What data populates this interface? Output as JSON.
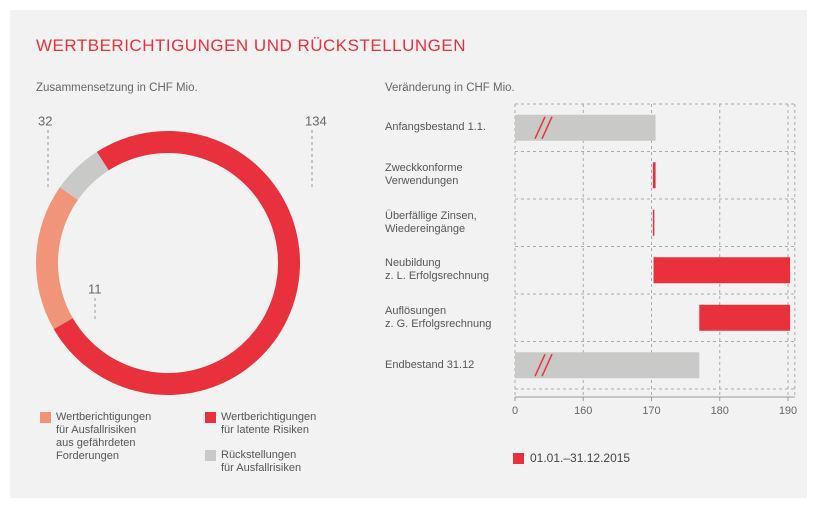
{
  "title": "WERTBERICHTIGUNGEN UND RÜCKSTELLUNGEN",
  "chart_data": [
    {
      "type": "donut",
      "subtitle": "Zusammensetzung in CHF Mio.",
      "categories": [
        "Wertberichtigungen\nfür Ausfallrisiken\naus gefährdeten\nForderungen",
        "Wertberichtigungen\nfür latente Risiken",
        "Rückstellungen\nfür Ausfallrisiken"
      ],
      "values": [
        32,
        134,
        11
      ],
      "colors": [
        "#f0957a",
        "#e8313c",
        "#c9c9c7"
      ]
    },
    {
      "type": "waterfall",
      "subtitle": "Veränderung in CHF Mio.",
      "categories": [
        "Anfangsbestand 1.1.",
        "Zweckkonforme\nVerwendungen",
        "Überfällige Zinsen,\nWiedereingänge",
        "Neubildung\nz. L. Erfolgsrechnung",
        "Auflösungen\nz. G. Erfolgsrechnung",
        "Endbestand 31.12"
      ],
      "totals": {
        "color": "#c9c9c7",
        "values": [
          170.6,
          null,
          null,
          null,
          null,
          177.0
        ]
      },
      "series": [
        {
          "name": "01.01.–31.12.2015",
          "color": "#e8313c",
          "values": [
            null,
            -0.4,
            0.1,
            20.0,
            -13.3,
            null
          ]
        }
      ],
      "xlim": [
        0,
        191
      ],
      "xticks": [
        0,
        160,
        170,
        180,
        190
      ],
      "grid": true
    }
  ]
}
